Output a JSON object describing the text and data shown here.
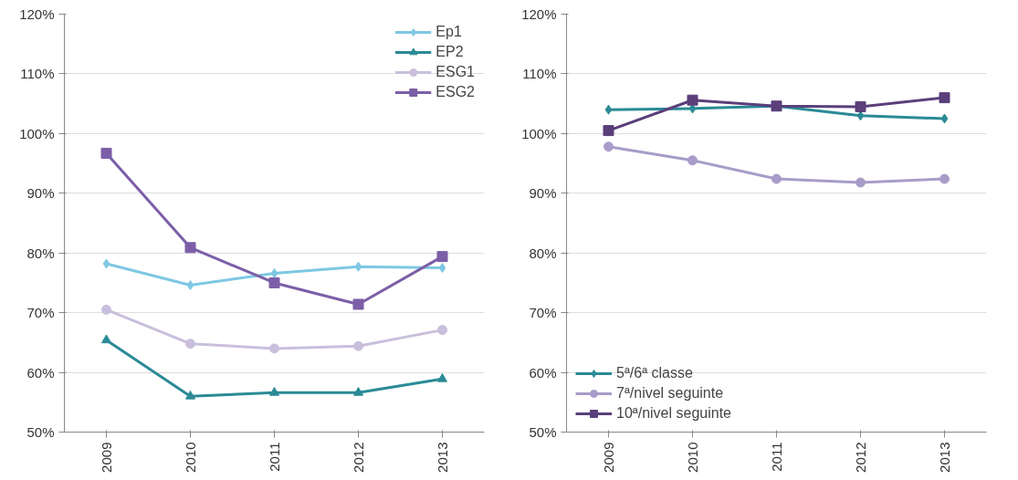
{
  "chart_data": [
    {
      "type": "line",
      "categories": [
        "2009",
        "2010",
        "2011",
        "2012",
        "2013"
      ],
      "ylim": [
        50,
        120
      ],
      "yticks": [
        {
          "value": 50,
          "label": "50%"
        },
        {
          "value": 60,
          "label": "60%"
        },
        {
          "value": 70,
          "label": "70%"
        },
        {
          "value": 80,
          "label": "80%"
        },
        {
          "value": 90,
          "label": "90%"
        },
        {
          "value": 100,
          "label": "100%"
        },
        {
          "value": 110,
          "label": "110%"
        },
        {
          "value": 120,
          "label": "120%"
        }
      ],
      "grid": "y",
      "legend": "top right",
      "series": [
        {
          "name": "Ep1",
          "color": "#7ec8e3",
          "marker": "diamond",
          "values": [
            78.2,
            74.6,
            76.6,
            77.7,
            77.5
          ]
        },
        {
          "name": "EP2",
          "color": "#2a8a96",
          "marker": "triangle",
          "values": [
            65.4,
            56.0,
            56.6,
            56.6,
            58.9
          ]
        },
        {
          "name": "ESG1",
          "color": "#c9bfdc",
          "marker": "circle",
          "values": [
            70.5,
            64.8,
            64.0,
            64.4,
            67.1
          ]
        },
        {
          "name": "ESG2",
          "color": "#7b5ea7",
          "marker": "square",
          "values": [
            96.7,
            80.9,
            75.0,
            71.4,
            79.4
          ]
        }
      ]
    },
    {
      "type": "line",
      "categories": [
        "2009",
        "2010",
        "2011",
        "2012",
        "2013"
      ],
      "ylim": [
        50,
        120
      ],
      "yticks": [
        {
          "value": 50,
          "label": "50%"
        },
        {
          "value": 60,
          "label": "60%"
        },
        {
          "value": 70,
          "label": "70%"
        },
        {
          "value": 80,
          "label": "80%"
        },
        {
          "value": 90,
          "label": "90%"
        },
        {
          "value": 100,
          "label": "100%"
        },
        {
          "value": 110,
          "label": "110%"
        },
        {
          "value": 120,
          "label": "120%"
        }
      ],
      "grid": "y",
      "legend": "bottom left",
      "series": [
        {
          "name": "5ª/6ª classe",
          "color": "#2a8a96",
          "marker": "diamond",
          "values": [
            104.0,
            104.2,
            104.6,
            103.0,
            102.5
          ]
        },
        {
          "name": "7ª/nivel seguinte",
          "color": "#a89cc8",
          "marker": "circle",
          "values": [
            97.8,
            95.5,
            92.4,
            91.8,
            92.4
          ]
        },
        {
          "name": "10ª/nivel seguinte",
          "color": "#5a3f7a",
          "marker": "square",
          "values": [
            100.5,
            105.6,
            104.6,
            104.5,
            106.0
          ]
        }
      ]
    }
  ]
}
